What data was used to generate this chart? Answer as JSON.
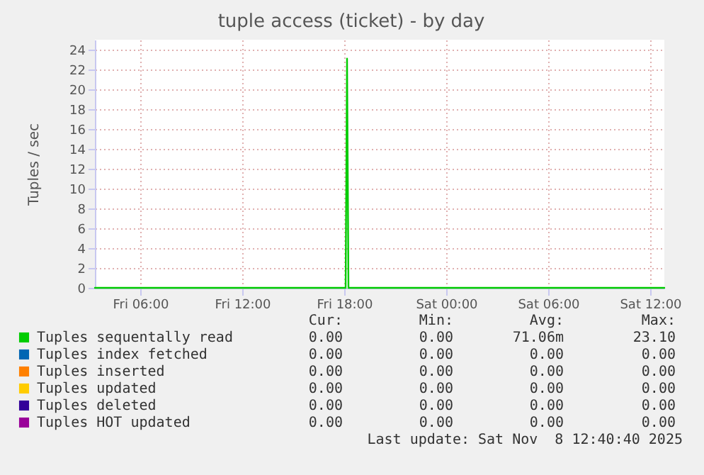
{
  "chart_data": {
    "type": "line",
    "title": "tuple access (ticket) - by day",
    "ylabel": "Tuples / sec",
    "x": [
      "2025-11-07T03:20",
      "2025-11-07T18:05",
      "2025-11-07T18:10",
      "2025-11-07T18:15",
      "2025-11-08T12:50"
    ],
    "series": [
      {
        "name": "Tuples sequentally read",
        "color": "#00cc00",
        "values": [
          0,
          0,
          23.1,
          0,
          0
        ]
      },
      {
        "name": "Tuples index fetched",
        "color": "#0066b3",
        "values": [
          null,
          null,
          null,
          null,
          null
        ]
      },
      {
        "name": "Tuples inserted",
        "color": "#ff8000",
        "values": [
          null,
          null,
          null,
          null,
          null
        ]
      },
      {
        "name": "Tuples updated",
        "color": "#ffcc00",
        "values": [
          null,
          null,
          null,
          null,
          null
        ]
      },
      {
        "name": "Tuples deleted",
        "color": "#330099",
        "values": [
          null,
          null,
          null,
          null,
          null
        ]
      },
      {
        "name": "Tuples HOT updated",
        "color": "#990099",
        "values": [
          null,
          null,
          null,
          null,
          null
        ]
      }
    ],
    "xlim": [
      "2025-11-07T03:20",
      "2025-11-08T12:50"
    ],
    "xticks": [
      {
        "value": "2025-11-07T06:00",
        "label": "Fri 06:00"
      },
      {
        "value": "2025-11-07T12:00",
        "label": "Fri 12:00"
      },
      {
        "value": "2025-11-07T18:00",
        "label": "Fri 18:00"
      },
      {
        "value": "2025-11-08T00:00",
        "label": "Sat 00:00"
      },
      {
        "value": "2025-11-08T06:00",
        "label": "Sat 06:00"
      },
      {
        "value": "2025-11-08T12:00",
        "label": "Sat 12:00"
      }
    ],
    "ylim": [
      0,
      25
    ],
    "yticks": [
      0,
      2,
      4,
      6,
      8,
      10,
      12,
      14,
      16,
      18,
      20,
      22,
      24
    ],
    "grid": true,
    "legend": "bottom left",
    "annotations": [
      "Cur:",
      "Min:",
      "Avg:",
      "Max:",
      "0.00",
      "0.00",
      "71.06m",
      "23.10",
      "0.00",
      "0.00",
      "0.00",
      "0.00",
      "0.00",
      "0.00",
      "0.00",
      "0.00",
      "0.00",
      "0.00",
      "0.00",
      "0.00",
      "0.00",
      "0.00",
      "0.00",
      "0.00",
      "0.00",
      "0.00",
      "0.00",
      "0.00",
      "Last update: Sat Nov  8 12:40:40 2025"
    ]
  }
}
